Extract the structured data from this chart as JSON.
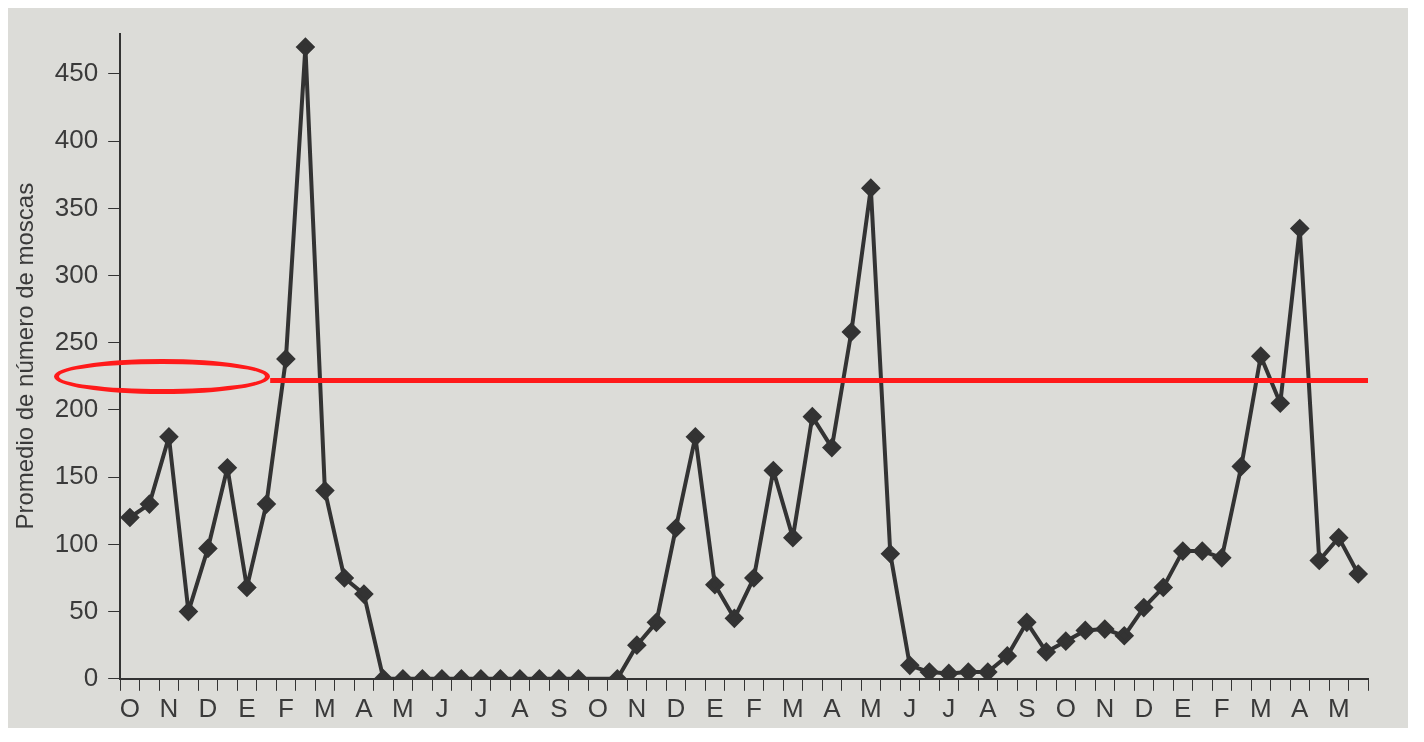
{
  "chart_data": {
    "type": "line",
    "ylabel": "Promedio de número de moscas",
    "categories": [
      "O",
      null,
      "N",
      null,
      "D",
      null,
      "E",
      null,
      "F",
      null,
      "M",
      null,
      "A",
      null,
      "M",
      null,
      "J",
      null,
      "J",
      null,
      "A",
      null,
      "S",
      null,
      "O",
      null,
      "N",
      null,
      "D",
      null,
      "E",
      null,
      "F",
      null,
      "M",
      null,
      "A",
      null,
      "M",
      null,
      "J",
      null,
      "J",
      null,
      "A",
      null,
      "S",
      null,
      "O",
      null,
      "N",
      null,
      "D",
      null,
      "E",
      null,
      "F",
      null,
      "M",
      null,
      "A",
      null,
      "M",
      null
    ],
    "ylim": [
      0,
      480
    ],
    "yticks": [
      0,
      50,
      100,
      150,
      200,
      250,
      300,
      350,
      400,
      450
    ],
    "series": [
      {
        "color": "#333333",
        "values": [
          120,
          130,
          180,
          50,
          97,
          157,
          68,
          130,
          238,
          470,
          140,
          75,
          63,
          0,
          0,
          0,
          0,
          0,
          0,
          0,
          0,
          0,
          0,
          0,
          null,
          0,
          25,
          42,
          112,
          180,
          70,
          45,
          75,
          155,
          105,
          195,
          172,
          258,
          365,
          93,
          10,
          5,
          4,
          5,
          5,
          17,
          42,
          20,
          28,
          36,
          37,
          32,
          53,
          68,
          95,
          95,
          90,
          158,
          240,
          205,
          335,
          88,
          105,
          78
        ]
      }
    ],
    "ref_lines": [
      {
        "axis": "y",
        "value": 222,
        "color": "#ff1a1a"
      }
    ],
    "marker": "diamond",
    "grid": false,
    "legend": false
  }
}
